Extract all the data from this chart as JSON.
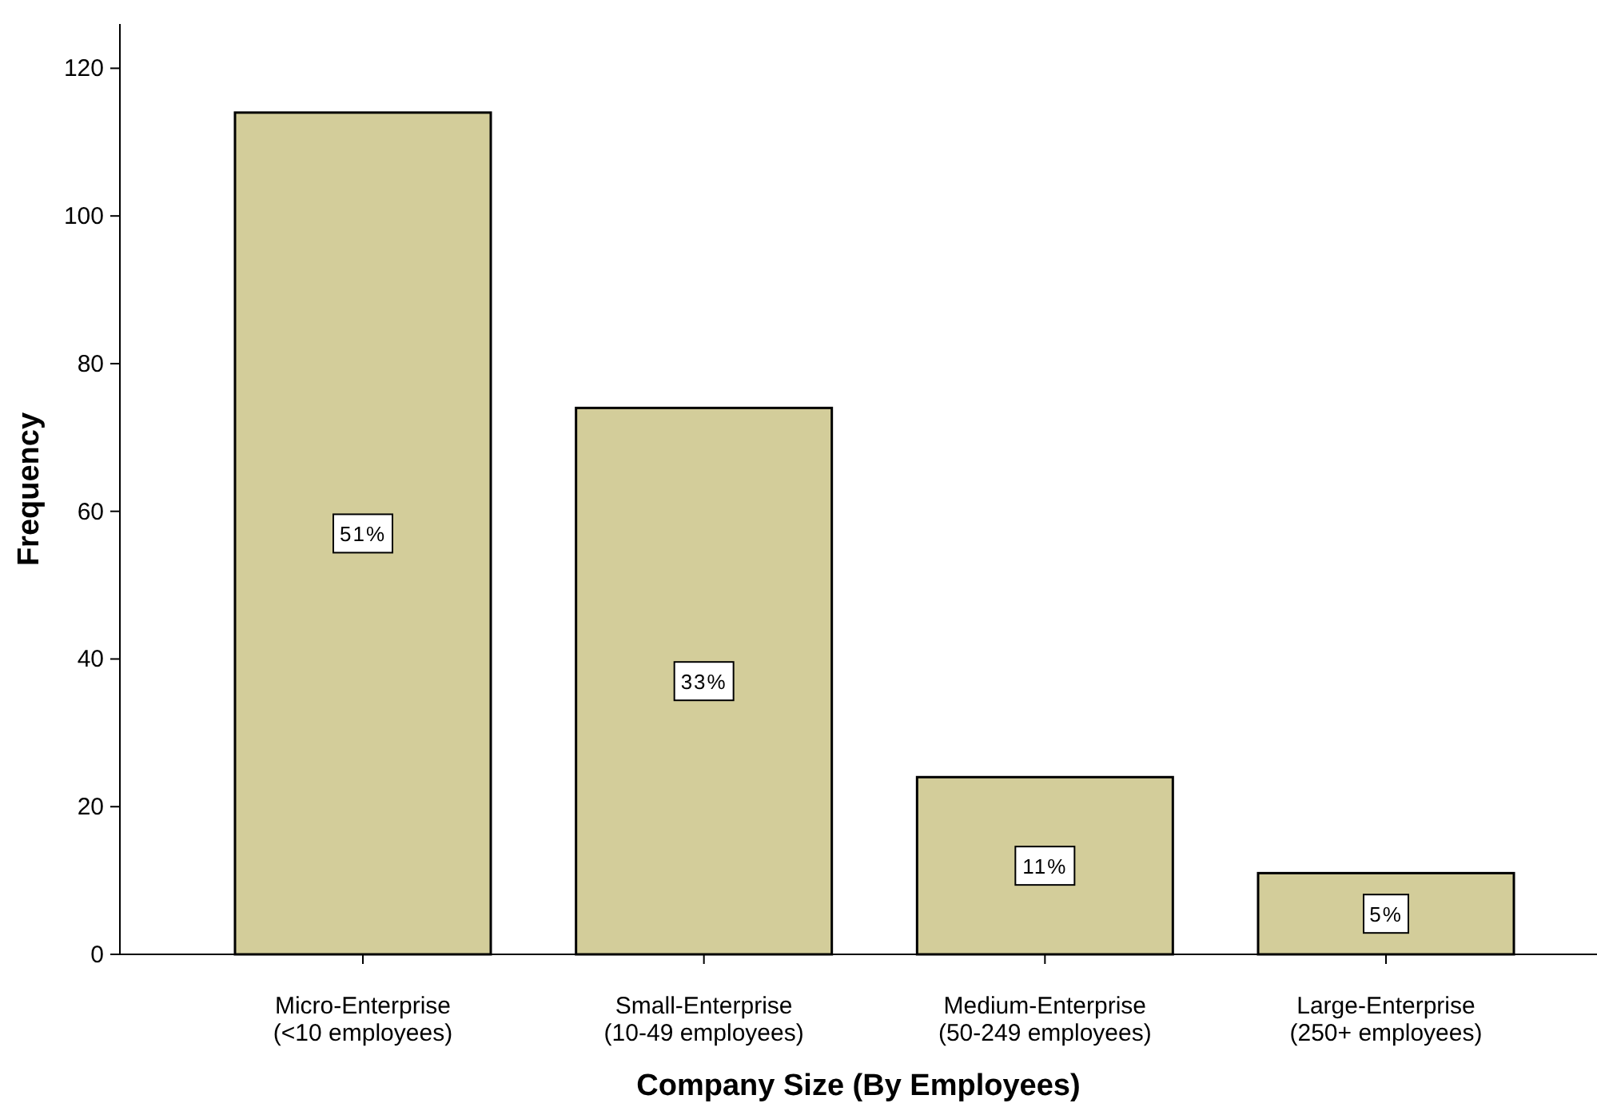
{
  "chart_data": {
    "type": "bar",
    "xlabel": "Company Size (By Employees)",
    "ylabel": "Frequency",
    "categories": [
      "Micro-Enterprise\n(<10 employees)",
      "Small-Enterprise\n(10-49 employees)",
      "Medium-Enterprise\n(50-249 employees)",
      "Large-Enterprise\n(250+ employees)"
    ],
    "values": [
      114,
      74,
      24,
      11
    ],
    "annotations": [
      {
        "text": "51%",
        "x": "Micro-Enterprise\n(<10 employees)",
        "y": 57
      },
      {
        "text": "33%",
        "x": "Small-Enterprise\n(10-49 employees)",
        "y": 37
      },
      {
        "text": "11%",
        "x": "Medium-Enterprise\n(50-249 employees)",
        "y": 12
      },
      {
        "text": "5%",
        "x": "Large-Enterprise\n(250+ employees)",
        "y": 5.5
      }
    ],
    "color": "#d3cd9a",
    "ylim": [
      0,
      126
    ],
    "yticks": [
      0,
      20,
      40,
      60,
      80,
      100,
      120
    ],
    "grid": false
  }
}
